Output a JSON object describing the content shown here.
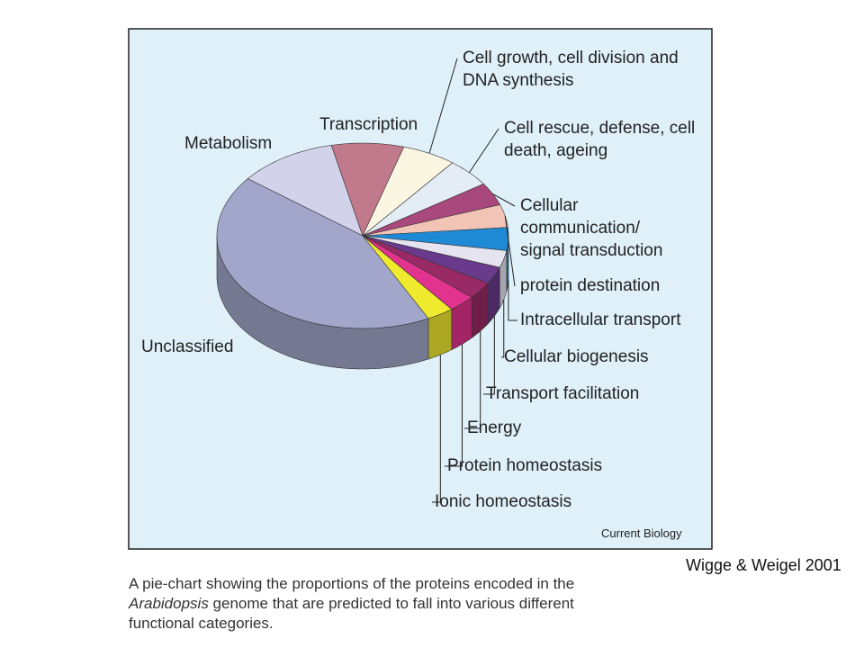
{
  "chart_data": {
    "type": "pie",
    "categories": [
      "Metabolism",
      "Transcription",
      "Cell growth, cell division and DNA synthesis",
      "Cell rescue, defense, cell death, ageing",
      "Cellular communication/ signal transduction",
      "protein destination",
      "Intracellular transport",
      "Cellular biogenesis",
      "Transport facilitation",
      "Energy",
      "Protein homeostasis",
      "Ionic homeostasis",
      "Unclassified"
    ],
    "values": [
      11,
      8,
      6,
      5,
      4,
      4,
      4,
      3,
      3,
      3,
      3,
      3,
      43
    ],
    "colors": [
      "#d2d2ea",
      "#c07a8c",
      "#fbf6e2",
      "#e4ecf6",
      "#a8487c",
      "#f2c4b6",
      "#1e8ad6",
      "#e6e4f0",
      "#6a3a8c",
      "#9a2a66",
      "#e2338e",
      "#f0ea2e",
      "#a2a6ca"
    ],
    "source": "Current Biology"
  },
  "citation": "Wigge & Weigel 2001",
  "caption": {
    "line1": "A pie-chart showing the proportions of the proteins encoded in the",
    "italic": "Arabidopsis",
    "line2": " genome that are predicted to fall into various different",
    "line3": "functional categories."
  }
}
